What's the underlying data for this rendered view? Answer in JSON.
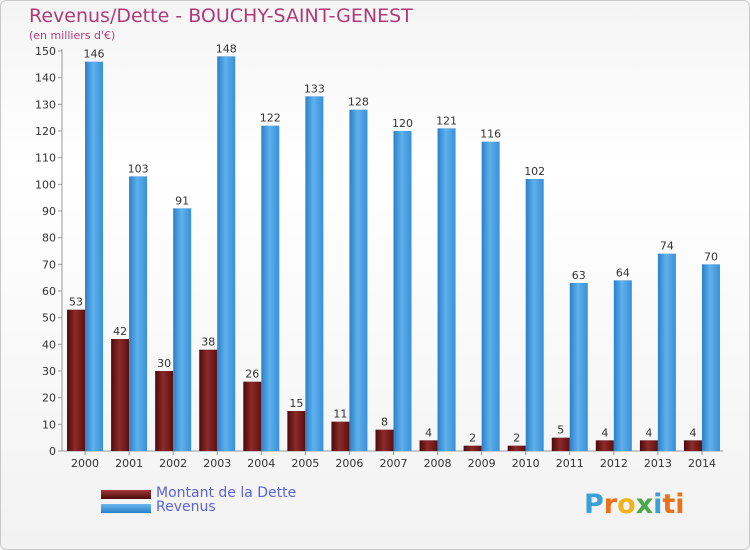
{
  "title": "Revenus/Dette - BOUCHY-SAINT-GENEST",
  "subtitle": "(en milliers d'€)",
  "logo": {
    "letters": [
      "P",
      "r",
      "o",
      "x",
      "i",
      "t",
      "i"
    ],
    "colors": [
      "#3aa0d8",
      "#e8711a",
      "#f2b31c",
      "#4aa84a",
      "#3aa0d8",
      "#e8711a",
      "#e8711a"
    ]
  },
  "chart_data": {
    "type": "bar",
    "title": "Revenus/Dette - BOUCHY-SAINT-GENEST",
    "ylabel": "(en milliers d'€)",
    "categories": [
      "2000",
      "2001",
      "2002",
      "2003",
      "2004",
      "2005",
      "2006",
      "2007",
      "2008",
      "2009",
      "2010",
      "2011",
      "2012",
      "2013",
      "2014"
    ],
    "series": [
      {
        "name": "Montant de la Dette",
        "color": "#7a1a1a",
        "values": [
          53,
          42,
          30,
          38,
          26,
          15,
          11,
          8,
          4,
          2,
          2,
          5,
          4,
          4,
          4
        ]
      },
      {
        "name": "Revenus",
        "color": "#3d97df",
        "values": [
          146,
          103,
          91,
          148,
          122,
          133,
          128,
          120,
          121,
          116,
          102,
          63,
          64,
          74,
          70
        ]
      }
    ],
    "ylim": [
      0,
      150
    ],
    "yticks": [
      0,
      10,
      20,
      30,
      40,
      50,
      60,
      70,
      80,
      90,
      100,
      110,
      120,
      130,
      140,
      150
    ],
    "grid": false,
    "legend": "bottom-left"
  }
}
